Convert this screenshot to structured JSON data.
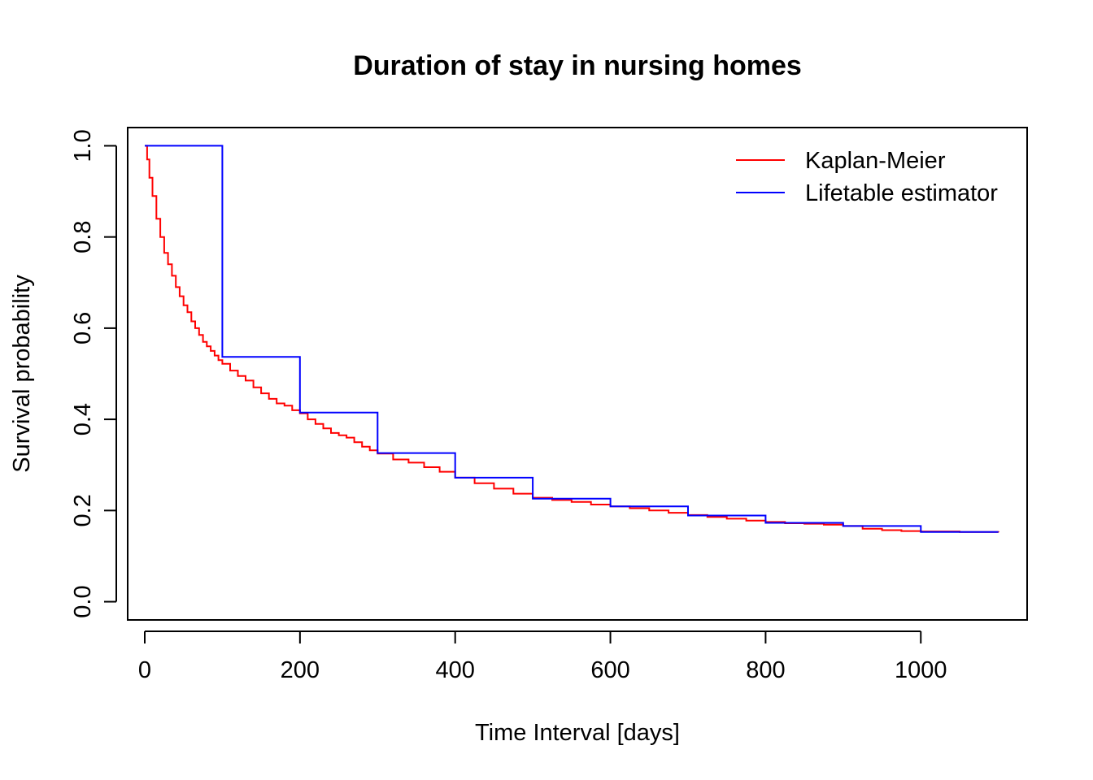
{
  "chart_data": {
    "type": "line",
    "title": "Duration of stay in nursing homes",
    "xlabel": "Time Interval [days]",
    "ylabel": "Survival probability",
    "xlim": [
      -22,
      1137
    ],
    "ylim": [
      -0.04,
      1.04
    ],
    "xticks": [
      0,
      200,
      400,
      600,
      800,
      1000
    ],
    "xtick_labels": [
      "0",
      "200",
      "400",
      "600",
      "800",
      "1000"
    ],
    "yticks": [
      0,
      0.2,
      0.4,
      0.6,
      0.8,
      1.0
    ],
    "ytick_labels": [
      "0.0",
      "0.2",
      "0.4",
      "0.6",
      "0.8",
      "1.0"
    ],
    "grid": false,
    "legend_position": "top-right",
    "series": [
      {
        "name": "Kaplan-Meier",
        "color": "#ff0000",
        "step": "post",
        "x": [
          0,
          3,
          6,
          10,
          15,
          20,
          25,
          30,
          35,
          40,
          45,
          50,
          55,
          60,
          65,
          70,
          75,
          80,
          85,
          90,
          95,
          100,
          110,
          120,
          130,
          140,
          150,
          160,
          170,
          180,
          190,
          200,
          210,
          220,
          230,
          240,
          250,
          260,
          270,
          280,
          290,
          300,
          320,
          340,
          360,
          380,
          400,
          425,
          450,
          475,
          500,
          525,
          550,
          575,
          600,
          625,
          650,
          675,
          700,
          725,
          750,
          775,
          800,
          825,
          850,
          875,
          900,
          925,
          950,
          975,
          1000,
          1050,
          1100
        ],
        "y": [
          1.0,
          0.97,
          0.93,
          0.89,
          0.84,
          0.8,
          0.765,
          0.74,
          0.715,
          0.69,
          0.67,
          0.65,
          0.635,
          0.615,
          0.6,
          0.585,
          0.57,
          0.56,
          0.55,
          0.54,
          0.53,
          0.522,
          0.507,
          0.495,
          0.485,
          0.47,
          0.457,
          0.445,
          0.435,
          0.43,
          0.42,
          0.413,
          0.4,
          0.39,
          0.38,
          0.37,
          0.365,
          0.36,
          0.35,
          0.34,
          0.332,
          0.325,
          0.312,
          0.305,
          0.295,
          0.285,
          0.272,
          0.26,
          0.248,
          0.237,
          0.228,
          0.223,
          0.219,
          0.213,
          0.209,
          0.205,
          0.2,
          0.195,
          0.19,
          0.186,
          0.182,
          0.178,
          0.175,
          0.172,
          0.171,
          0.169,
          0.166,
          0.16,
          0.157,
          0.155,
          0.154,
          0.153,
          0.152
        ]
      },
      {
        "name": "Lifetable estimator",
        "color": "#0000ff",
        "step": "post",
        "x": [
          0,
          100,
          200,
          300,
          400,
          500,
          600,
          700,
          800,
          900,
          1000,
          1100
        ],
        "y": [
          1.0,
          0.537,
          0.415,
          0.326,
          0.272,
          0.226,
          0.209,
          0.189,
          0.173,
          0.166,
          0.153,
          0.153
        ]
      }
    ]
  }
}
